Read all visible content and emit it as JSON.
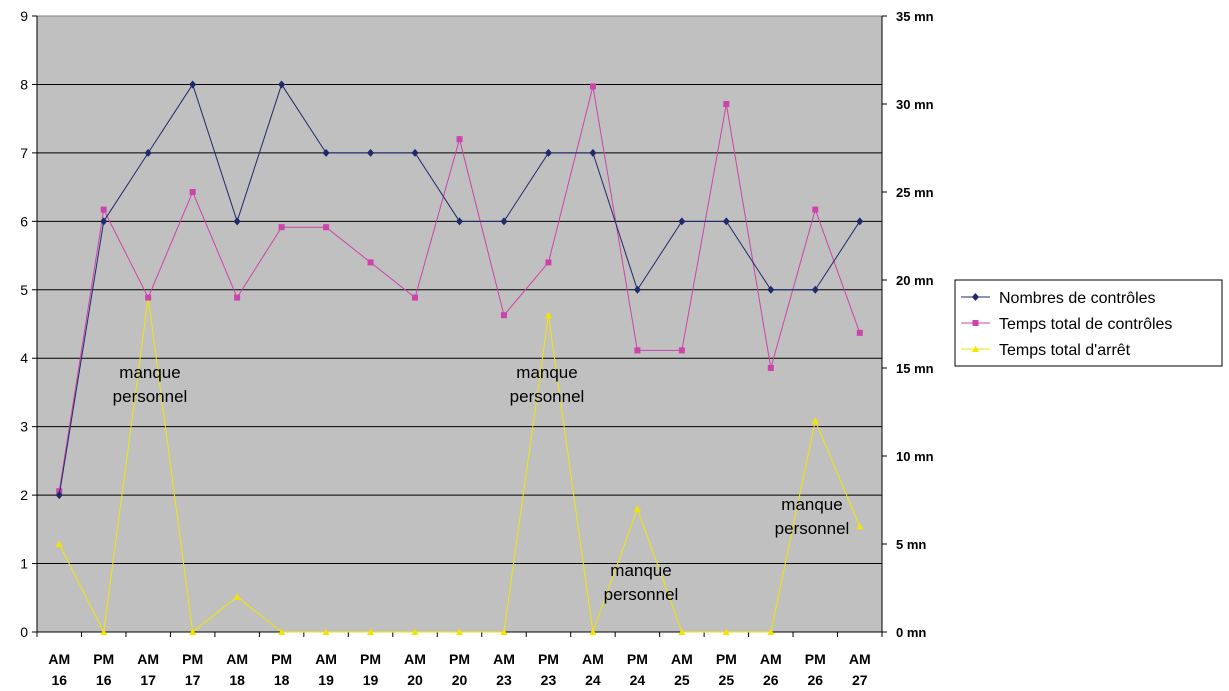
{
  "chart_data": {
    "type": "line",
    "categories": [
      [
        "AM",
        "16"
      ],
      [
        "PM",
        "16"
      ],
      [
        "AM",
        "17"
      ],
      [
        "PM",
        "17"
      ],
      [
        "AM",
        "18"
      ],
      [
        "PM",
        "18"
      ],
      [
        "AM",
        "19"
      ],
      [
        "PM",
        "19"
      ],
      [
        "AM",
        "20"
      ],
      [
        "PM",
        "20"
      ],
      [
        "AM",
        "23"
      ],
      [
        "PM",
        "23"
      ],
      [
        "AM",
        "24"
      ],
      [
        "PM",
        "24"
      ],
      [
        "AM",
        "25"
      ],
      [
        "PM",
        "25"
      ],
      [
        "AM",
        "26"
      ],
      [
        "PM",
        "26"
      ],
      [
        "AM",
        "27"
      ]
    ],
    "y_left": {
      "ylim": [
        0,
        9
      ],
      "ticks": [
        "0",
        "1",
        "2",
        "3",
        "4",
        "5",
        "6",
        "7",
        "8",
        "9"
      ]
    },
    "y_right": {
      "ylim": [
        0,
        35
      ],
      "ticks": [
        "0 mn",
        "5 mn",
        "10 mn",
        "15 mn",
        "20 mn",
        "25 mn",
        "30 mn",
        "35 mn"
      ]
    },
    "grid": true,
    "legend_position": "right",
    "series": [
      {
        "name": "Nombres de contrôles",
        "axis": "left",
        "color": "#1f2a6b",
        "marker": "diamond",
        "values": [
          2,
          6,
          7,
          8,
          6,
          8,
          7,
          7,
          7,
          6,
          6,
          7,
          7,
          5,
          6,
          6,
          5,
          5,
          6
        ]
      },
      {
        "name": "Temps total de contrôles",
        "axis": "right",
        "color": "#cc44aa",
        "marker": "square",
        "values": [
          8,
          24,
          19,
          25,
          19,
          23,
          23,
          21,
          19,
          28,
          18,
          21,
          31,
          16,
          16,
          30,
          15,
          24,
          17
        ]
      },
      {
        "name": "Temps total d'arrêt",
        "axis": "right",
        "color": "#f2e600",
        "marker": "triangle",
        "values": [
          5,
          0,
          19,
          0,
          2,
          0,
          0,
          0,
          0,
          0,
          0,
          18,
          0,
          7,
          0,
          0,
          0,
          12,
          6
        ]
      }
    ],
    "annotations": [
      {
        "lines": [
          "manque",
          "personnel"
        ],
        "x_index": 2
      },
      {
        "lines": [
          "manque",
          "personnel"
        ],
        "x_index": 11
      },
      {
        "lines": [
          "manque",
          "personnel"
        ],
        "x_index": 13
      },
      {
        "lines": [
          "manque",
          "personnel"
        ],
        "x_index": 17
      }
    ]
  }
}
